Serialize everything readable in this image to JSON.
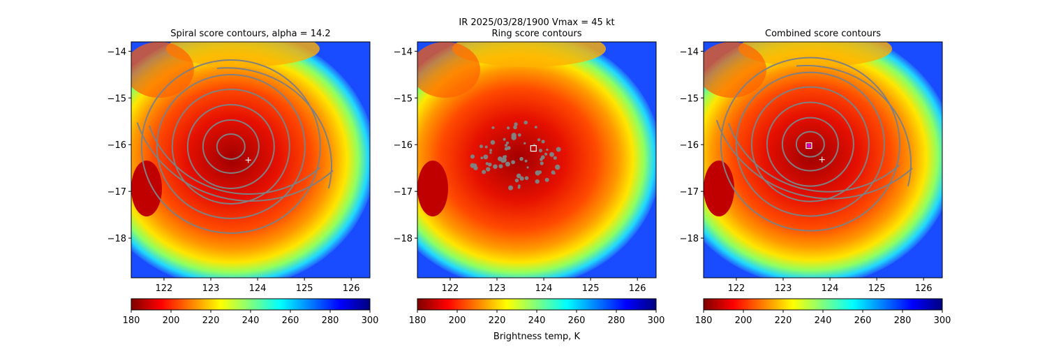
{
  "figure": {
    "suptitle_line1": "IR  2025/03/28/1900    Vmax = 45 kt",
    "colorbar_label": "Brightness temp, K"
  },
  "chart_data": [
    {
      "type": "heatmap",
      "title": "Spiral score contours, alpha = 14.2",
      "overlay": "spiral-contours",
      "xlim": [
        121.3,
        126.4
      ],
      "ylim": [
        -18.85,
        -13.8
      ],
      "xticks": [
        122,
        123,
        124,
        125,
        126
      ],
      "yticks": [
        -14,
        -15,
        -16,
        -17,
        -18
      ],
      "storm_center_lon": 123.4,
      "storm_center_lat": -16.1,
      "markers": [
        {
          "symbol": "+",
          "lon": 123.8,
          "lat": -16.33,
          "color": "#ffffff"
        }
      ],
      "colorbar": {
        "min": 180,
        "max": 300,
        "ticks": [
          180,
          200,
          220,
          240,
          260,
          280,
          300
        ],
        "cmap": "jet_r"
      },
      "xlabel": "",
      "ylabel": ""
    },
    {
      "type": "heatmap",
      "title": "Ring score contours",
      "overlay": "ring-contours",
      "xlim": [
        121.3,
        126.4
      ],
      "ylim": [
        -18.85,
        -13.8
      ],
      "xticks": [
        122,
        123,
        124,
        125,
        126
      ],
      "yticks": [
        -14,
        -15,
        -16,
        -17,
        -18
      ],
      "storm_center_lon": 123.4,
      "storm_center_lat": -16.1,
      "markers": [
        {
          "symbol": "square",
          "lon": 123.78,
          "lat": -16.08,
          "color": "#ffffff"
        }
      ],
      "colorbar": {
        "min": 180,
        "max": 300,
        "ticks": [
          180,
          200,
          220,
          240,
          260,
          280,
          300
        ],
        "cmap": "jet_r"
      },
      "xlabel": "",
      "ylabel": ""
    },
    {
      "type": "heatmap",
      "title": "Combined score contours",
      "overlay": "spiral-contours",
      "xlim": [
        121.3,
        126.4
      ],
      "ylim": [
        -18.85,
        -13.8
      ],
      "xticks": [
        122,
        123,
        124,
        125,
        126
      ],
      "yticks": [
        -14,
        -15,
        -16,
        -17,
        -18
      ],
      "storm_center_lon": 123.55,
      "storm_center_lat": -16.05,
      "markers": [
        {
          "symbol": "+",
          "lon": 123.83,
          "lat": -16.32,
          "color": "#ffffff"
        },
        {
          "symbol": "square",
          "lon": 123.55,
          "lat": -16.02,
          "color": "#ffffff"
        },
        {
          "symbol": "dot",
          "lon": 123.55,
          "lat": -16.02,
          "color": "#cc00cc"
        }
      ],
      "colorbar": {
        "min": 180,
        "max": 300,
        "ticks": [
          180,
          200,
          220,
          240,
          260,
          280,
          300
        ],
        "cmap": "jet_r"
      },
      "xlabel": "",
      "ylabel": ""
    }
  ]
}
